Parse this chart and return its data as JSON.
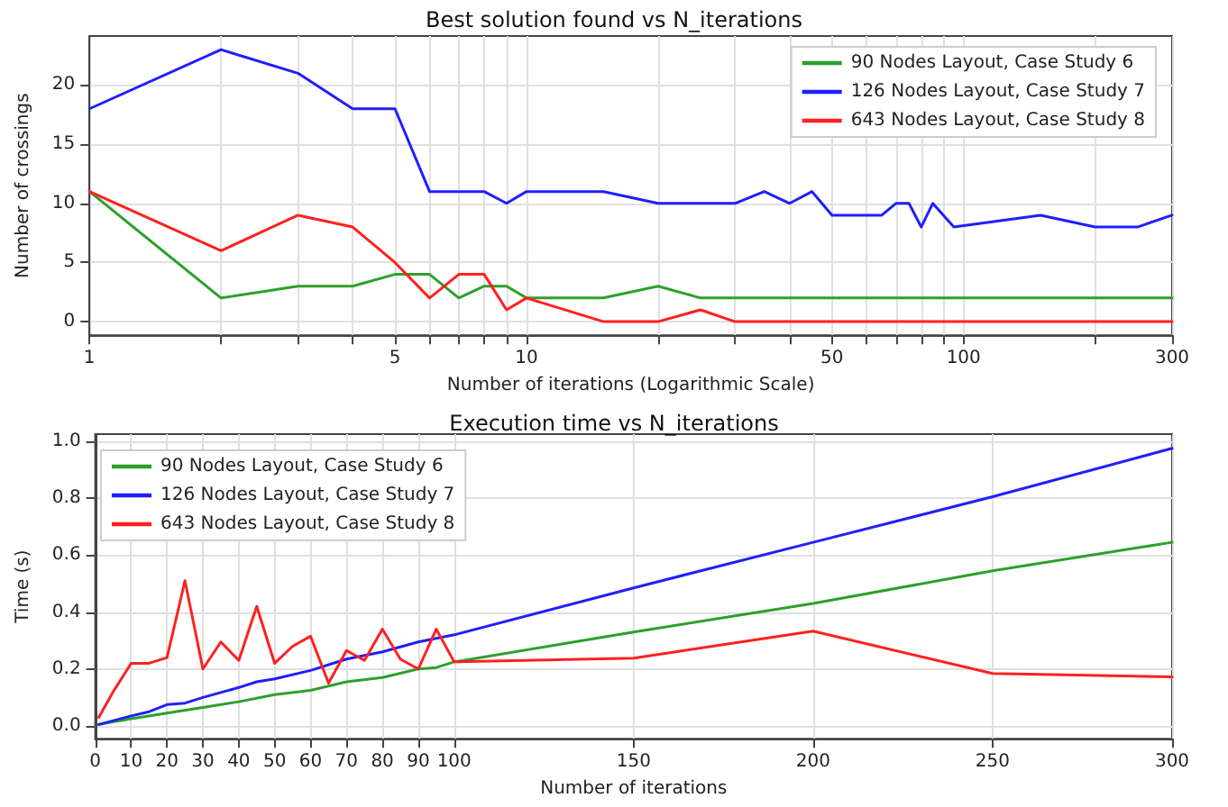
{
  "chart_data": [
    {
      "type": "line",
      "title": "Best solution found vs N_iterations",
      "xlabel": "Number of iterations (Logarithmic Scale)",
      "ylabel": "Number of crossings",
      "log": "x",
      "xlim": [
        1,
        300
      ],
      "xticks": [
        1,
        {
          "value": 2,
          "label": null
        },
        {
          "value": 3,
          "label": null
        },
        {
          "value": 4,
          "label": null
        },
        5,
        {
          "value": 6,
          "label": null
        },
        {
          "value": 7,
          "label": null
        },
        {
          "value": 8,
          "label": null
        },
        {
          "value": 9,
          "label": null
        },
        10,
        {
          "value": 20,
          "label": null
        },
        {
          "value": 30,
          "label": null
        },
        {
          "value": 40,
          "label": null
        },
        50,
        {
          "value": 60,
          "label": null
        },
        {
          "value": 70,
          "label": null
        },
        {
          "value": 80,
          "label": null
        },
        {
          "value": 90,
          "label": null
        },
        100,
        {
          "value": 200,
          "label": null
        },
        300
      ],
      "ylim": [
        -1.15,
        24.15
      ],
      "yticks": [
        0,
        5,
        10,
        15,
        20
      ],
      "grid": true,
      "legend": "top right",
      "line_style": "solid",
      "marker": "none",
      "series": [
        {
          "name": "90 Nodes Layout, Case Study 6",
          "color": "#2ca02c",
          "x": [
            1,
            2,
            3,
            4,
            5,
            6,
            7,
            8,
            9,
            10,
            15,
            20,
            25,
            300
          ],
          "values": [
            11,
            2,
            3,
            3,
            4,
            4,
            2,
            3,
            3,
            2,
            2,
            3,
            2,
            2
          ]
        },
        {
          "name": "126 Nodes Layout, Case Study 7",
          "color": "#1f1fff",
          "x": [
            1,
            2,
            3,
            4,
            5,
            6,
            8,
            9,
            10,
            15,
            20,
            30,
            35,
            40,
            45,
            50,
            65,
            70,
            75,
            80,
            85,
            95,
            150,
            200,
            250,
            300
          ],
          "values": [
            18,
            23,
            21,
            18,
            18,
            11,
            11,
            10,
            11,
            11,
            10,
            10,
            11,
            10,
            11,
            9,
            9,
            10,
            10,
            8,
            10,
            8,
            9,
            8,
            8,
            9
          ]
        },
        {
          "name": "643 Nodes Layout, Case Study 8",
          "color": "#ff2020",
          "x": [
            1,
            2,
            3,
            4,
            5,
            6,
            7,
            8,
            9,
            10,
            15,
            20,
            25,
            30,
            300
          ],
          "values": [
            11,
            6,
            9,
            8,
            5,
            2,
            4,
            4,
            1,
            2,
            0,
            0,
            1,
            0,
            0
          ]
        }
      ]
    },
    {
      "type": "line",
      "title": "Execution time vs N_iterations",
      "xlabel": "Number of iterations",
      "ylabel": "Time (s)",
      "xlim": [
        0,
        300
      ],
      "xticks": [
        0,
        10,
        20,
        30,
        40,
        50,
        60,
        70,
        80,
        90,
        100,
        150,
        200,
        250,
        300
      ],
      "ylim": [
        -0.045,
        1.025
      ],
      "yticks": [
        {
          "value": 0,
          "label": "0.0"
        },
        {
          "value": 0.2,
          "label": "0.2"
        },
        {
          "value": 0.4,
          "label": "0.4"
        },
        {
          "value": 0.6,
          "label": "0.6"
        },
        {
          "value": 0.8,
          "label": "0.8"
        },
        {
          "value": 1.0,
          "label": "1.0"
        }
      ],
      "grid": true,
      "legend": "top left",
      "line_style": "solid",
      "marker": "none",
      "series": [
        {
          "name": "90 Nodes Layout, Case Study 6",
          "color": "#2ca02c",
          "x": [
            1,
            10,
            20,
            30,
            40,
            50,
            60,
            70,
            80,
            90,
            95,
            100,
            150,
            200,
            250,
            300
          ],
          "values": [
            0.005,
            0.025,
            0.045,
            0.065,
            0.085,
            0.11,
            0.125,
            0.155,
            0.17,
            0.2,
            0.205,
            0.225,
            0.33,
            0.43,
            0.545,
            0.645
          ]
        },
        {
          "name": "126 Nodes Layout, Case Study 7",
          "color": "#1f1fff",
          "x": [
            1,
            10,
            15,
            20,
            25,
            30,
            40,
            45,
            50,
            60,
            70,
            80,
            90,
            100,
            150,
            200,
            250,
            300
          ],
          "values": [
            0.005,
            0.035,
            0.05,
            0.075,
            0.08,
            0.1,
            0.135,
            0.155,
            0.165,
            0.195,
            0.235,
            0.26,
            0.295,
            0.32,
            0.485,
            0.645,
            0.805,
            0.975
          ]
        },
        {
          "name": "643 Nodes Layout, Case Study 8",
          "color": "#ff2020",
          "x": [
            1,
            5,
            10,
            15,
            20,
            25,
            30,
            35,
            40,
            45,
            50,
            55,
            60,
            65,
            70,
            75,
            80,
            85,
            90,
            95,
            100,
            150,
            200,
            250,
            300
          ],
          "values": [
            0.03,
            0.12,
            0.22,
            0.22,
            0.24,
            0.51,
            0.2,
            0.295,
            0.23,
            0.42,
            0.22,
            0.28,
            0.315,
            0.15,
            0.265,
            0.23,
            0.34,
            0.235,
            0.2,
            0.34,
            0.225,
            0.238,
            0.333,
            0.184,
            0.172
          ]
        }
      ]
    }
  ]
}
